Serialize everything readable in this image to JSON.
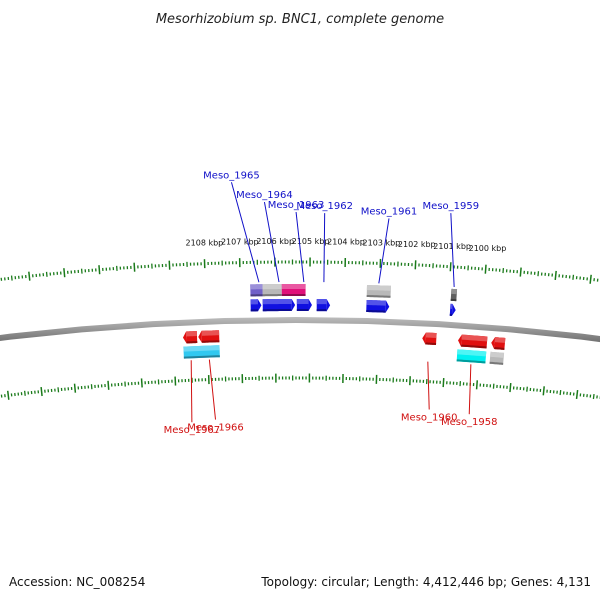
{
  "title": "Mesorhizobium sp. BNC1, complete genome",
  "footer": {
    "accession": "Accession: NC_008254",
    "topology": "Topology: circular; Length: 4,412,446 bp; Genes: 4,131"
  },
  "colors": {
    "forward_label": "#1010c8",
    "reverse_label": "#d01010",
    "backbone": "#8a8a8a",
    "tick": "#1a7a1a"
  },
  "kbp_labels": [
    {
      "text": "2108 kbp",
      "angle": 92.07
    },
    {
      "text": "2107 kbp",
      "angle": 91.27
    },
    {
      "text": "2106 kbp",
      "angle": 90.47
    },
    {
      "text": "2105 kbp",
      "angle": 89.67
    },
    {
      "text": "2104 kbp",
      "angle": 88.87
    },
    {
      "text": "2103 kbp",
      "angle": 88.07
    },
    {
      "text": "2102 kbp",
      "angle": 87.27
    },
    {
      "text": "2101 kbp",
      "angle": 86.47
    },
    {
      "text": "2100 kbp",
      "angle": 85.67
    }
  ],
  "features": [
    {
      "ring": 1,
      "a1": 90.33,
      "a2": 89.78,
      "color": "#e0107a"
    },
    {
      "ring": 1,
      "a1": 90.77,
      "a2": 90.33,
      "color": "#b8b8b8"
    },
    {
      "ring": 1,
      "a1": 91.05,
      "a2": 90.77,
      "color": "#7060c8"
    },
    {
      "ring": 1,
      "a1": 88.37,
      "a2": 87.82,
      "color": "#b8b8b8"
    },
    {
      "ring": 1,
      "a1": 86.43,
      "a2": 86.3,
      "color": "#606060"
    },
    {
      "ring": 0,
      "a1": 91.05,
      "a2": 90.8,
      "color": "#1010e0",
      "dir": 1
    },
    {
      "ring": 0,
      "a1": 90.77,
      "a2": 90.02,
      "color": "#1010e0",
      "dir": 1
    },
    {
      "ring": 0,
      "a1": 89.98,
      "a2": 89.63,
      "color": "#1010e0",
      "dir": 1
    },
    {
      "ring": 0,
      "a1": 89.52,
      "a2": 89.21,
      "color": "#1010e0",
      "dir": 1
    },
    {
      "ring": 0,
      "a1": 88.37,
      "a2": 87.84,
      "color": "#1010e0",
      "dir": 1
    },
    {
      "ring": 0,
      "a1": 86.43,
      "a2": 86.3,
      "color": "#1010e0",
      "dir": 1
    },
    {
      "ring": -1,
      "a1": 92.65,
      "a2": 92.32,
      "color": "#e01010",
      "dir": -1
    },
    {
      "ring": -1,
      "a1": 92.29,
      "a2": 91.8,
      "color": "#e01010",
      "dir": -1
    },
    {
      "ring": -1,
      "a1": 87.04,
      "a2": 86.71,
      "color": "#e01010",
      "dir": -1
    },
    {
      "ring": -1,
      "a1": 86.2,
      "a2": 85.52,
      "color": "#e01010",
      "dir": -1
    },
    {
      "ring": -1,
      "a1": 85.42,
      "a2": 85.1,
      "color": "#e01010",
      "dir": -1
    },
    {
      "ring": -2,
      "a1": 92.65,
      "a2": 91.8,
      "color": "#30c8f0"
    },
    {
      "ring": -2,
      "a1": 86.2,
      "a2": 85.52,
      "color": "#00f0f0"
    },
    {
      "ring": -2,
      "a1": 85.42,
      "a2": 85.1,
      "color": "#b8b8b8"
    }
  ],
  "gene_labels": [
    {
      "name": "Meso_1965",
      "strand": "forward",
      "angle": 90.85
    },
    {
      "name": "Meso_1964",
      "strand": "forward",
      "angle": 90.39
    },
    {
      "name": "Meso_1963",
      "strand": "forward",
      "angle": 89.82
    },
    {
      "name": "Meso_1962",
      "strand": "forward",
      "angle": 89.36
    },
    {
      "name": "Meso_1961",
      "strand": "forward",
      "angle": 88.1
    },
    {
      "name": "Meso_1959",
      "strand": "forward",
      "angle": 86.37
    },
    {
      "name": "Meso_1967",
      "strand": "reverse",
      "angle": 92.48
    },
    {
      "name": "Meso_1966",
      "strand": "reverse",
      "angle": 92.05
    },
    {
      "name": "Meso_1960",
      "strand": "reverse",
      "angle": 86.88
    },
    {
      "name": "Meso_1958",
      "strand": "reverse",
      "angle": 85.86
    }
  ]
}
